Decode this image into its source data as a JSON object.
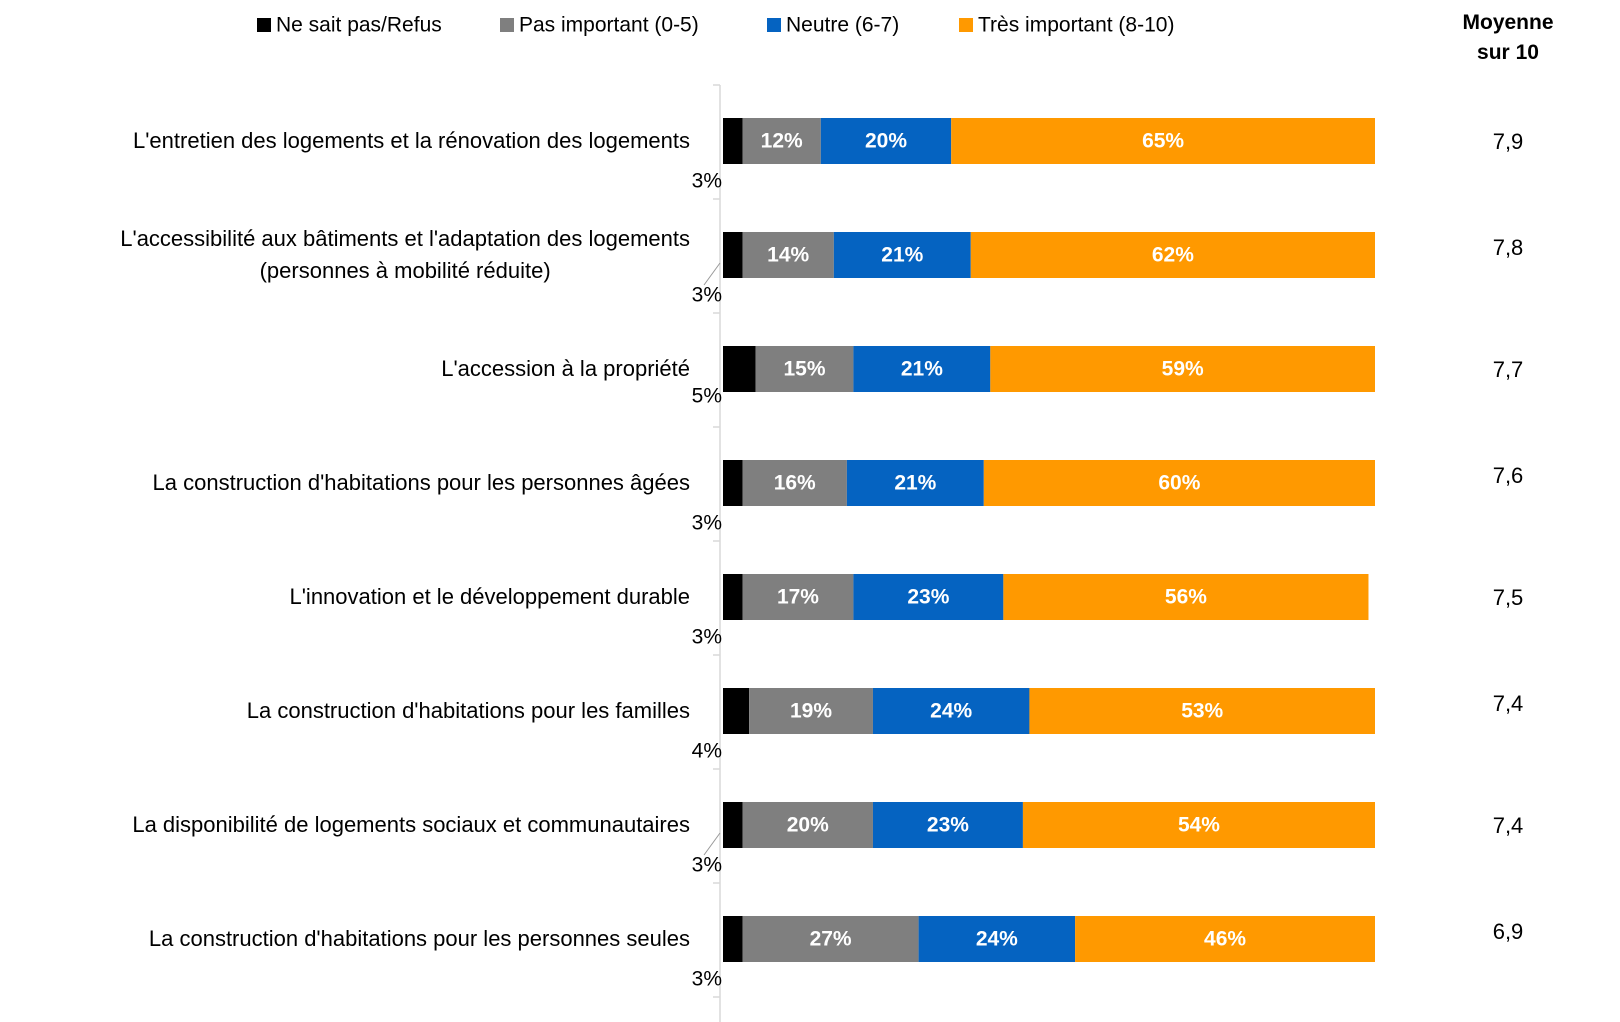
{
  "chart_data": {
    "type": "stacked-bar-horizontal",
    "categories": [
      "L'entretien des logements et la rénovation des logements",
      "L'accessibilité aux bâtiments et l'adaptation des logements\n(personnes à mobilité réduite)",
      "L'accession à la propriété",
      "La construction d'habitations pour les personnes âgées",
      "L'innovation et le développement durable",
      "La construction d'habitations pour les familles",
      "La disponibilité de logements sociaux et communautaires",
      "La construction d'habitations pour les personnes seules"
    ],
    "series": [
      {
        "name": "Ne sait pas/Refus",
        "color": "#000000",
        "values": [
          3,
          3,
          5,
          3,
          3,
          4,
          3,
          3
        ],
        "value_labels": [
          "3%",
          "3%",
          "5%",
          "3%",
          "3%",
          "4%",
          "3%",
          "3%"
        ]
      },
      {
        "name": "Pas important (0-5)",
        "color": "#7f7f7f",
        "values": [
          12,
          14,
          15,
          16,
          17,
          19,
          20,
          27
        ],
        "value_labels": [
          "12%",
          "14%",
          "15%",
          "16%",
          "17%",
          "19%",
          "20%",
          "27%"
        ]
      },
      {
        "name": "Neutre (6-7)",
        "color": "#0563c1",
        "values": [
          20,
          21,
          21,
          21,
          23,
          24,
          23,
          24
        ],
        "value_labels": [
          "20%",
          "21%",
          "21%",
          "21%",
          "23%",
          "24%",
          "23%",
          "24%"
        ]
      },
      {
        "name": "Très important (8-10)",
        "color": "#ff9900",
        "values": [
          65,
          62,
          59,
          60,
          56,
          53,
          54,
          46
        ],
        "value_labels": [
          "65%",
          "62%",
          "59%",
          "60%",
          "56%",
          "53%",
          "54%",
          "46%"
        ]
      }
    ],
    "xlim": [
      0,
      100
    ],
    "mean": {
      "title": "Moyenne\nsur 10",
      "values": [
        7.9,
        7.8,
        7.7,
        7.6,
        7.5,
        7.4,
        7.4,
        6.9
      ],
      "value_labels": [
        "7,9",
        "7,8",
        "7,7",
        "7,6",
        "7,5",
        "7,4",
        "7,4",
        "6,9"
      ]
    }
  }
}
